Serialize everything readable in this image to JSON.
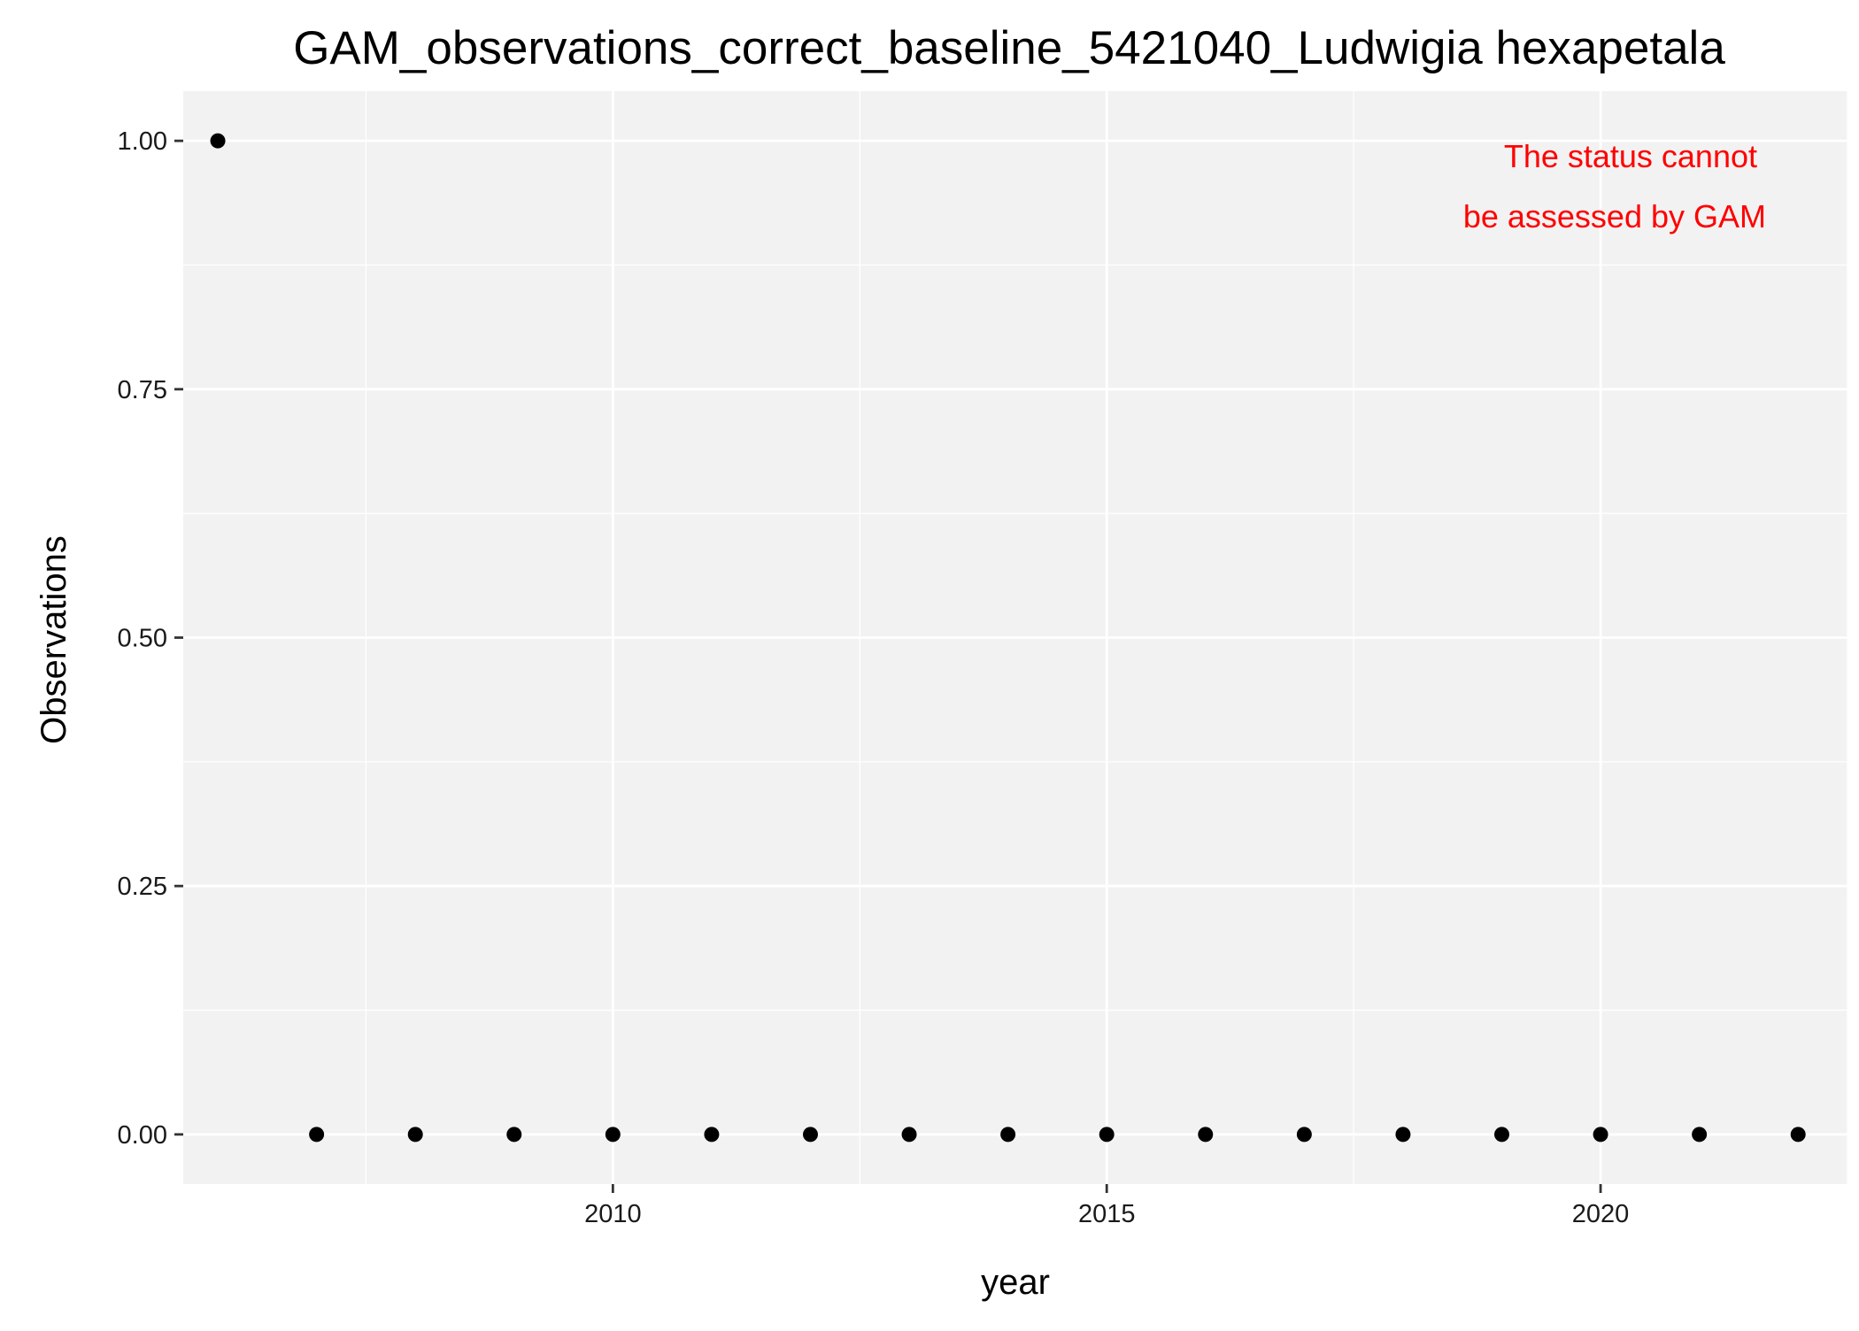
{
  "chart_data": {
    "type": "scatter",
    "title": "GAM_observations_correct_baseline_5421040_Ludwigia hexapetala",
    "xlabel": "year",
    "ylabel": "Observations",
    "x": [
      2006,
      2007,
      2008,
      2009,
      2010,
      2011,
      2012,
      2013,
      2014,
      2015,
      2016,
      2017,
      2018,
      2019,
      2020,
      2021,
      2022
    ],
    "y": [
      1,
      0,
      0,
      0,
      0,
      0,
      0,
      0,
      0,
      0,
      0,
      0,
      0,
      0,
      0,
      0,
      0
    ],
    "xlim": [
      2005.65,
      2022.5
    ],
    "ylim": [
      -0.05,
      1.05
    ],
    "x_ticks": [
      2010,
      2015,
      2020
    ],
    "x_tick_labels": [
      "2010",
      "2015",
      "2020"
    ],
    "y_ticks": [
      0,
      0.25,
      0.5,
      0.75,
      1
    ],
    "y_tick_labels": [
      "0.00",
      "0.25",
      "0.50",
      "0.75",
      "1.00"
    ],
    "grid": true,
    "annotation": {
      "lines": [
        "The status cannot",
        "be assessed by GAM"
      ],
      "color": "#ff0000"
    },
    "colors": {
      "panel_background": "#f2f2f2",
      "grid": "#ffffff",
      "points": "#000000"
    }
  }
}
